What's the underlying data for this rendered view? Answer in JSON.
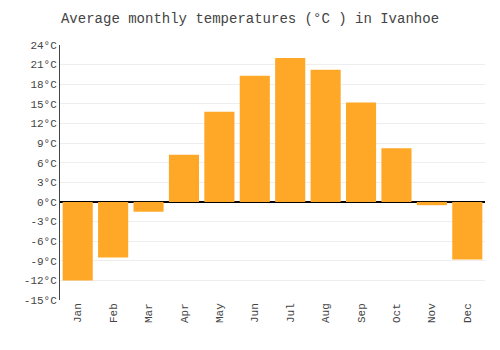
{
  "chart_data": {
    "type": "bar",
    "title": "Average monthly temperatures (°C ) in Ivanhoe",
    "categories": [
      "Jan",
      "Feb",
      "Mar",
      "Apr",
      "May",
      "Jun",
      "Jul",
      "Aug",
      "Sep",
      "Oct",
      "Nov",
      "Dec"
    ],
    "values": [
      -12,
      -8.5,
      -1.5,
      7.2,
      13.8,
      19.3,
      22.0,
      20.2,
      15.2,
      8.2,
      -0.5,
      -8.8
    ],
    "color": "#FFA726",
    "ylim": [
      -15,
      24
    ],
    "yticks": [
      {
        "value": -15,
        "label": "-15°C"
      },
      {
        "value": -12,
        "label": "-12°C"
      },
      {
        "value": -9,
        "label": "-9°C"
      },
      {
        "value": -6,
        "label": "-6°C"
      },
      {
        "value": -3,
        "label": "-3°C"
      },
      {
        "value": 0,
        "label": "0°C"
      },
      {
        "value": 3,
        "label": "3°C"
      },
      {
        "value": 6,
        "label": "6°C"
      },
      {
        "value": 9,
        "label": "9°C"
      },
      {
        "value": 12,
        "label": "12°C"
      },
      {
        "value": 15,
        "label": "15°C"
      },
      {
        "value": 18,
        "label": "18°C"
      },
      {
        "value": 21,
        "label": "21°C"
      },
      {
        "value": 24,
        "label": "24°C"
      }
    ],
    "grid": true
  }
}
